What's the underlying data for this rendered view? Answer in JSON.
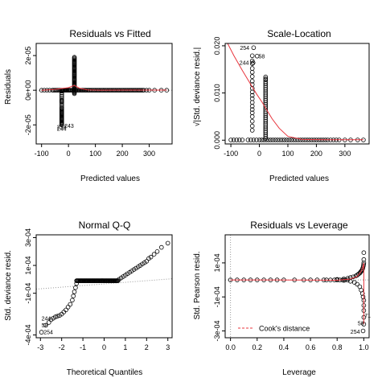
{
  "chart_data": [
    {
      "type": "scatter",
      "title": "Residuals vs Fitted",
      "xlabel": "Predicted values",
      "ylabel": "Residuals",
      "xlim": [
        -120,
        385
      ],
      "ylim": [
        -3.1e-05,
        2.7e-05
      ],
      "xticks": [
        -100,
        0,
        100,
        200,
        300
      ],
      "xtick_labels": [
        "-100",
        "0",
        "100",
        "200",
        "300"
      ],
      "yticks": [
        -2e-05,
        0,
        2e-05
      ],
      "ytick_labels": [
        "-2e-05",
        "0e+00",
        "2e-05"
      ],
      "reference_line": {
        "y": 0,
        "style": "dotted",
        "color": "#999999"
      },
      "smoother": {
        "color": "#e8353d",
        "x": [
          -100,
          -50,
          0,
          22,
          40,
          70,
          120,
          200,
          300,
          365
        ],
        "y": [
          0,
          5e-07,
          1.5e-06,
          2.8e-06,
          1.2e-06,
          2e-07,
          5e-08,
          1e-07,
          1e-07,
          1e-07
        ]
      },
      "points": {
        "horizontal_cluster": {
          "y": 0,
          "x": [
            -100,
            -90,
            -80,
            -70,
            -60,
            -55,
            -50,
            -45,
            -40,
            -35,
            -32,
            -28,
            -25,
            -22,
            -20,
            -18,
            -15,
            -12,
            -10,
            -8,
            -5,
            -2,
            0,
            2,
            5,
            8,
            12,
            16,
            20,
            24,
            28,
            32,
            36,
            40,
            44,
            48,
            52,
            56,
            60,
            64,
            68,
            72,
            76,
            80,
            85,
            90,
            95,
            100,
            105,
            110,
            115,
            120,
            125,
            130,
            135,
            140,
            145,
            150,
            155,
            160,
            165,
            170,
            175,
            180,
            185,
            190,
            195,
            200,
            205,
            210,
            215,
            220,
            225,
            230,
            235,
            240,
            245,
            250,
            255,
            260,
            265,
            270,
            275,
            280,
            290,
            300,
            320,
            345,
            365
          ]
        },
        "vertical_cluster_fitted_22": {
          "x": 22,
          "y": [
            1.9e-05,
            1.85e-05,
            1.8e-05,
            1.75e-05,
            1.7e-05,
            1.65e-05,
            1.6e-05,
            1.55e-05,
            1.5e-05,
            1.45e-05,
            1.4e-05,
            1.35e-05,
            1.3e-05,
            1.25e-05,
            1.2e-05,
            1.15e-05,
            1.1e-05,
            1.05e-05,
            1e-05,
            9.5e-06,
            9e-06,
            8.5e-06,
            8e-06,
            7.5e-06,
            7e-06,
            6.5e-06,
            6e-06,
            5.5e-06,
            5e-06,
            4.5e-06,
            4e-06,
            3.5e-06,
            3e-06,
            2.5e-06,
            2e-06,
            1.5e-06,
            1e-06,
            5e-07,
            -5e-07,
            -1e-06,
            -1.5e-06,
            -2e-06
          ]
        },
        "negative_cluster_fitted_minus25": {
          "x": -25,
          "y": [
            -5e-07,
            -1.5e-06,
            -2.5e-06,
            -3.5e-06,
            -4.5e-06,
            -5.5e-06,
            -6e-06,
            -6.5e-06,
            -7e-06,
            -8e-06,
            -9e-06,
            -1e-05,
            -1.05e-05,
            -1.1e-05,
            -1.15e-05,
            -1.2e-05,
            -1.25e-05,
            -1.3e-05,
            -1.35e-05,
            -1.4e-05,
            -1.45e-05,
            -1.5e-05,
            -1.55e-05,
            -1.6e-05,
            -1.65e-05,
            -1.7e-05,
            -1.75e-05,
            -1.8e-05,
            -1.85e-05,
            -1.9e-05,
            -1.95e-05,
            -2e-05
          ]
        }
      },
      "annotations": [
        {
          "text": "254",
          "x": -43,
          "y": -2.12e-05
        },
        {
          "text": "244",
          "x": -43,
          "y": -2.22e-05
        },
        {
          "text": "243",
          "x": -15,
          "y": -2.05e-05
        }
      ]
    },
    {
      "type": "scatter",
      "title": "Scale-Location",
      "xlabel": "Predicted values",
      "ylabel": "√|Std. deviance resid.|",
      "xlim": [
        -120,
        385
      ],
      "ylim": [
        -0.0008,
        0.0205
      ],
      "xticks": [
        -100,
        0,
        100,
        200,
        300
      ],
      "xtick_labels": [
        "-100",
        "0",
        "100",
        "200",
        "300"
      ],
      "yticks": [
        0,
        0.01,
        0.02
      ],
      "ytick_labels": [
        "0.000",
        "0.010",
        "0.020"
      ],
      "smoother": {
        "color": "#e8353d",
        "x": [
          -120,
          -90,
          -60,
          -30,
          -10,
          10,
          25,
          45,
          70,
          100,
          150,
          250,
          365
        ],
        "y": [
          0.0215,
          0.018,
          0.0148,
          0.0118,
          0.0098,
          0.008,
          0.0065,
          0.0045,
          0.0025,
          0.0008,
          0.00015,
          0.0001,
          0.0001
        ]
      },
      "points": {
        "horizontal_cluster": {
          "y": 5e-05,
          "x": [
            -100,
            -90,
            -80,
            -70,
            -60,
            -40,
            -30,
            -20,
            -10,
            0,
            8,
            16,
            24,
            32,
            40,
            48,
            56,
            64,
            72,
            80,
            88,
            96,
            104,
            112,
            120,
            128,
            136,
            144,
            152,
            160,
            168,
            176,
            184,
            192,
            200,
            208,
            216,
            224,
            232,
            240,
            250,
            260,
            270,
            280,
            300,
            320,
            345,
            365
          ]
        },
        "vertical_cluster_fitted_minus25": {
          "x": -25,
          "y": [
            0.0021,
            0.003,
            0.004,
            0.005,
            0.0058,
            0.0065,
            0.0072,
            0.008,
            0.0088,
            0.0095,
            0.0102,
            0.011,
            0.0118,
            0.0125,
            0.0135,
            0.0144,
            0.0152,
            0.0162,
            0.0168,
            0.0179
          ]
        },
        "vertical_cluster_fitted_22": {
          "x": 22,
          "y": [
            0.0004,
            0.0008,
            0.0012,
            0.0016,
            0.002,
            0.0024,
            0.0028,
            0.0032,
            0.0036,
            0.004,
            0.0044,
            0.0048,
            0.0052,
            0.0056,
            0.006,
            0.0064,
            0.0068,
            0.0072,
            0.0076,
            0.008,
            0.0084,
            0.0088,
            0.0092,
            0.0096,
            0.01,
            0.0104,
            0.0108,
            0.0112,
            0.0116,
            0.012,
            0.0124,
            0.0128,
            0.013,
            0.0134
          ]
        },
        "labelled": [
          {
            "x": -20,
            "y": 0.0196
          },
          {
            "x": -8,
            "y": 0.0178
          },
          {
            "x": -22,
            "y": 0.0164
          }
        ]
      },
      "annotations": [
        {
          "text": "254",
          "x": -68,
          "y": 0.0196
        },
        {
          "text": "58",
          "x": -3,
          "y": 0.0178
        },
        {
          "text": "244",
          "x": -70,
          "y": 0.0164
        }
      ]
    },
    {
      "type": "scatter",
      "title": "Normal Q-Q",
      "xlabel": "Theoretical Quantiles",
      "ylabel": "Std. deviance resid.",
      "xlim": [
        -3.2,
        3.2
      ],
      "ylim": [
        -0.00042,
        0.00032
      ],
      "xticks": [
        -3,
        -2,
        -1,
        0,
        1,
        2,
        3
      ],
      "xtick_labels": [
        "-3",
        "-2",
        "-1",
        "0",
        "1",
        "2",
        "3"
      ],
      "yticks": [
        -0.0004,
        -0.0001,
        0.0001,
        0.0003
      ],
      "ytick_labels": [
        "-4e-04",
        "-1e-04",
        "1e-04",
        "3e-04"
      ],
      "reference_line": {
        "style": "dotted",
        "color": "#999999",
        "x": [
          -3.2,
          3.2
        ],
        "y": [
          -7.02e-05,
          4.2e-06
        ]
      },
      "points": {
        "lower_tail": {
          "x": [
            -2.95,
            -2.75,
            -2.6,
            -2.5,
            -2.4,
            -2.3,
            -2.2,
            -2.1,
            -2.0,
            -1.9,
            -1.8,
            -1.7,
            -1.6,
            -1.5,
            -1.45,
            -1.4,
            -1.35,
            -1.3
          ],
          "y": [
            -0.00038,
            -0.00033,
            -0.00031,
            -0.00029,
            -0.00028,
            -0.00027,
            -0.000265,
            -0.00026,
            -0.00025,
            -0.000235,
            -0.00022,
            -0.0002,
            -0.00018,
            -0.00015,
            -0.00012,
            -9e-05,
            -6e-05,
            -3e-05
          ]
        },
        "plateau": {
          "y": -1e-05,
          "x_from": -1.3,
          "x_to": 0.65
        },
        "upper_tail": {
          "x": [
            0.7,
            0.8,
            0.9,
            1.0,
            1.1,
            1.2,
            1.3,
            1.4,
            1.5,
            1.6,
            1.7,
            1.8,
            1.9,
            2.0,
            2.1,
            2.2,
            2.35,
            2.5,
            2.7,
            3.0
          ],
          "y": [
            0.0,
            1e-05,
            2e-05,
            3e-05,
            4e-05,
            5e-05,
            6e-05,
            7e-05,
            8e-05,
            9e-05,
            0.0001,
            0.00011,
            0.00012,
            0.00013,
            0.00015,
            0.00016,
            0.00018,
            0.0002,
            0.00023,
            0.00026
          ]
        }
      },
      "annotations": [
        {
          "text": "244",
          "x": -2.95,
          "y": -0.00028
        },
        {
          "text": "58",
          "x": -2.95,
          "y": -0.00033
        },
        {
          "text": "254",
          "x": -2.85,
          "y": -0.00038
        }
      ]
    },
    {
      "type": "scatter",
      "title": "Residuals vs Leverage",
      "xlabel": "Leverage",
      "ylabel": "Std. Pearson resid.",
      "xlim": [
        -0.04,
        1.04
      ],
      "ylim": [
        -0.00034,
        0.000265
      ],
      "xticks": [
        0,
        0.2,
        0.4,
        0.6,
        0.8,
        1.0
      ],
      "xtick_labels": [
        "0.0",
        "0.2",
        "0.4",
        "0.6",
        "0.8",
        "1.0"
      ],
      "yticks": [
        -0.0003,
        -0.0001,
        0.0001
      ],
      "ytick_labels": [
        "-3e-04",
        "-1e-04",
        "1e-04"
      ],
      "reference_lines": [
        {
          "y": 0,
          "style": "dotted",
          "color": "#999999"
        },
        {
          "x": 0,
          "style": "dotted",
          "color": "#999999"
        }
      ],
      "smoother": {
        "color": "#e8353d",
        "x": [
          0,
          0.3,
          0.6,
          0.8,
          0.9,
          0.95,
          0.98,
          0.995,
          1.0,
          1.0
        ],
        "y": [
          0,
          0,
          -1e-06,
          -2e-06,
          5e-06,
          2e-05,
          5e-05,
          8e-05,
          0.0001,
          -0.00026
        ]
      },
      "points": {
        "baseline": {
          "y": 0,
          "x": [
            0,
            0.05,
            0.1,
            0.15,
            0.2,
            0.25,
            0.3,
            0.35,
            0.4,
            0.48,
            0.55,
            0.6,
            0.65,
            0.7,
            0.72,
            0.75,
            0.78,
            0.8,
            0.82,
            0.84,
            0.86,
            0.88
          ]
        },
        "upper_arm": {
          "x": [
            0.8,
            0.85,
            0.88,
            0.9,
            0.92,
            0.94,
            0.95,
            0.96,
            0.97,
            0.975,
            0.98,
            0.985,
            0.99,
            0.993,
            0.996,
            0.999,
            1.0,
            1.0,
            1.0
          ],
          "y": [
            3e-06,
            6e-06,
            1e-05,
            1.4e-05,
            1.8e-05,
            2.3e-05,
            2.8e-05,
            3.4e-05,
            4e-05,
            4.5e-05,
            5e-05,
            5.5e-05,
            6.2e-05,
            7e-05,
            8e-05,
            9e-05,
            0.0001,
            0.00012,
            0.00016
          ]
        },
        "lower_arm": {
          "x": [
            0.85,
            0.9,
            0.93,
            0.95,
            0.97,
            0.98,
            0.99,
            0.995,
            1.0,
            1.0,
            1.0,
            1.0,
            1.0,
            0.995
          ],
          "y": [
            -3e-06,
            -8e-06,
            -1.5e-05,
            -2.5e-05,
            -4e-05,
            -6e-05,
            -8e-05,
            -0.0001,
            -0.00012,
            -0.00015,
            -0.00018,
            -0.00022,
            -0.00026,
            -0.0003
          ]
        }
      },
      "annotations": [
        {
          "text": "71",
          "x": 1.005,
          "y": -0.00021
        },
        {
          "text": "58",
          "x": 0.955,
          "y": -0.000255
        },
        {
          "text": "254",
          "x": 0.9,
          "y": -0.000305
        }
      ],
      "legend": {
        "text": "Cook's distance",
        "placement": "bottom-left",
        "line_style": "dashed",
        "color": "#e8353d"
      }
    }
  ]
}
